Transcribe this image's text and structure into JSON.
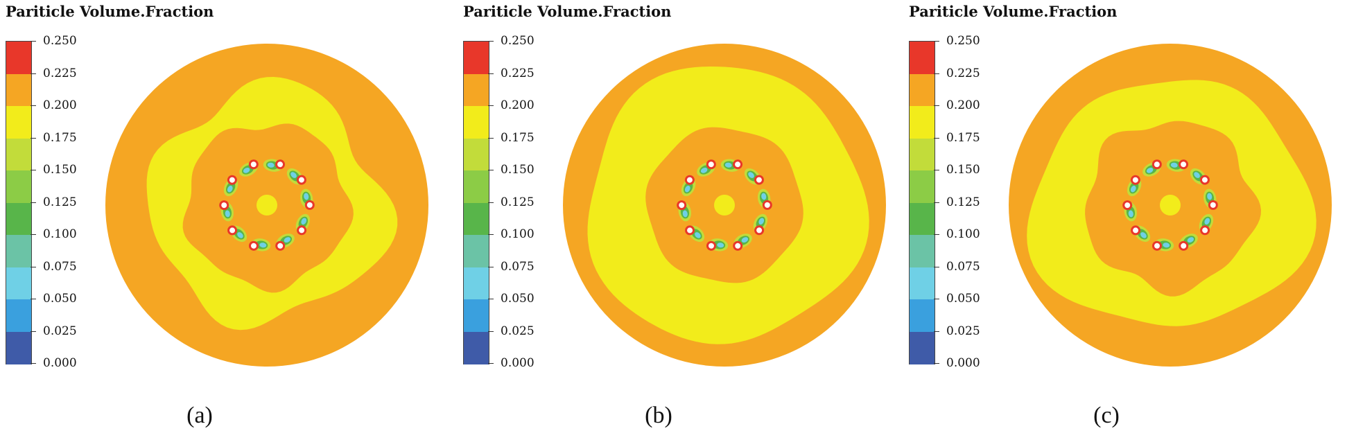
{
  "panels": [
    {
      "id": "a",
      "title": "Pariticle Volume.Fraction",
      "caption": "(a)",
      "layout": "a"
    },
    {
      "id": "b",
      "title": "Pariticle Volume.Fraction",
      "caption": "(b)",
      "layout": "b"
    },
    {
      "id": "c",
      "title": "Pariticle Volume.Fraction",
      "caption": "(c)",
      "layout": "c"
    }
  ],
  "chart_data": {
    "type": "heatmap",
    "title": "Pariticle Volume.Fraction",
    "colorbar_ticks": [
      "0.250",
      "0.225",
      "0.200",
      "0.175",
      "0.150",
      "0.125",
      "0.100",
      "0.075",
      "0.050",
      "0.025",
      "0.000"
    ],
    "colorbar_range": [
      0.0,
      0.25
    ],
    "colorbar_colors": [
      "#e8372a",
      "#f5a623",
      "#f2ec1b",
      "#c2dc3a",
      "#8ccc46",
      "#58b54a",
      "#6bc3a6",
      "#6fd0e6",
      "#3aa0de",
      "#3f5ba8"
    ],
    "series": [
      {
        "name": "(a)",
        "outer_ring_fraction": 0.225,
        "middle_band_fraction": 0.2,
        "core_fraction": 0.225,
        "hub_fraction": 0.2,
        "nozzle_count": 10
      },
      {
        "name": "(b)",
        "outer_ring_fraction": 0.225,
        "middle_band_fraction": 0.2,
        "core_fraction": 0.225,
        "hub_fraction": 0.2,
        "nozzle_count": 10
      },
      {
        "name": "(c)",
        "outer_ring_fraction": 0.225,
        "middle_band_fraction": 0.2,
        "core_fraction": 0.225,
        "hub_fraction": 0.2,
        "nozzle_count": 10
      }
    ]
  }
}
